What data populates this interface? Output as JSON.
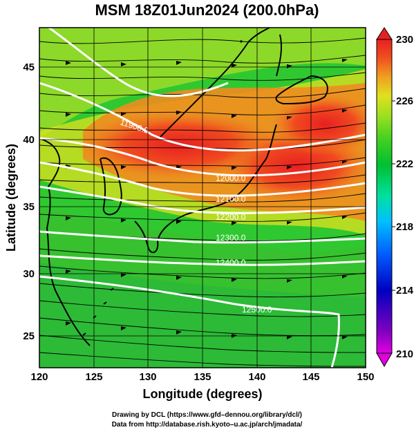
{
  "title": "MSM 18Z01Jun2024 (200.0hPa)",
  "xaxis": {
    "label": "Longitude (degrees)",
    "ticks": [
      "120",
      "125",
      "130",
      "135",
      "140",
      "145",
      "150"
    ],
    "range": [
      120,
      150
    ]
  },
  "yaxis": {
    "label": "Latitude (degrees)",
    "ticks": [
      "25",
      "30",
      "35",
      "40",
      "45"
    ],
    "range": [
      22.4,
      47.6
    ]
  },
  "colorbar": {
    "ticks": [
      "230",
      "226",
      "222",
      "218",
      "214",
      "210"
    ],
    "range": [
      210,
      230
    ],
    "colors": [
      "#e000e0",
      "#8000c0",
      "#0000c0",
      "#0060ff",
      "#00c0ff",
      "#00e0a0",
      "#00c030",
      "#40d020",
      "#a0e020",
      "#e0e020",
      "#f0a020",
      "#f05020",
      "#e82020"
    ]
  },
  "contours": [
    {
      "value": 11900.0,
      "label": "11900.0"
    },
    {
      "value": 12000.0,
      "label": "12000.0"
    },
    {
      "value": 12100.0,
      "label": "12100.0"
    },
    {
      "value": 12200.0,
      "label": "12200.0"
    },
    {
      "value": 12300.0,
      "label": "12300.0"
    },
    {
      "value": 12400.0,
      "label": "12400.0"
    },
    {
      "value": 12500.0,
      "label": "12500.0"
    }
  ],
  "footer": {
    "line1": "Drawing by DCL (https://www.gfd–dennou.org/library/dcl/)",
    "line2": "Data from http://database.rish.kyoto–u.ac.jp/arch/jmadata/"
  }
}
